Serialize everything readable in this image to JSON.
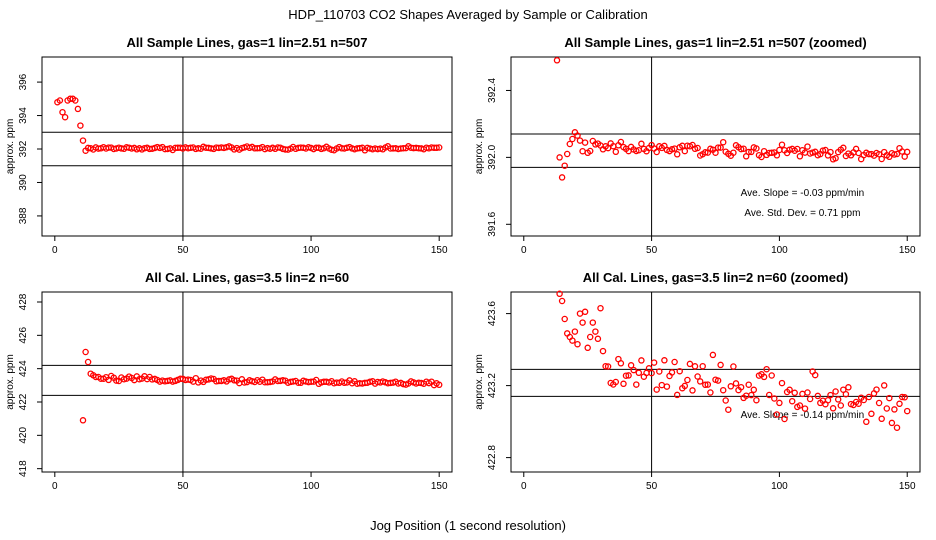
{
  "suptitle": "HDP_110703  CO2 Shapes Averaged by Sample or Calibration",
  "xlabel_common": "Jog Position (1 second resolution)",
  "colors": {
    "points": "#ff0000",
    "lines": "#000000",
    "background": "#ffffff"
  },
  "chart_data": [
    {
      "type": "scatter",
      "title": "All Sample Lines, gas=1 lin=2.51 n=507",
      "ylabel": "approx. ppm",
      "xlim": [
        -5,
        155
      ],
      "ylim": [
        386.8,
        397.5
      ],
      "xticks": [
        0,
        50,
        100,
        150
      ],
      "xtick_labels": [
        "0",
        "50",
        "100",
        "150"
      ],
      "yticks": [
        388,
        390,
        392,
        394,
        396
      ],
      "ytick_labels": [
        "388",
        "390",
        "392",
        "394",
        "396"
      ],
      "hlines": [
        393.0,
        391.0
      ],
      "vline": 50,
      "annotations": [],
      "series": [
        {
          "x": [
            1,
            2,
            3,
            4,
            5,
            6,
            7,
            8,
            9,
            10,
            11,
            12
          ],
          "y": [
            394.8,
            394.9,
            394.2,
            393.9,
            394.9,
            395.0,
            395.0,
            394.9,
            394.4,
            393.4,
            392.5,
            391.9
          ]
        }
      ],
      "series_trend": {
        "x_from": 13,
        "x_to": 150,
        "level": 392.05,
        "amp": 0.07,
        "trend": 0.0
      }
    },
    {
      "type": "scatter",
      "title": "All Sample Lines, gas=1 lin=2.51 n=507 (zoomed)",
      "ylabel": "approx. ppm",
      "xlim": [
        -5,
        155
      ],
      "ylim": [
        391.53,
        392.6
      ],
      "xticks": [
        0,
        50,
        100,
        150
      ],
      "xtick_labels": [
        "0",
        "50",
        "100",
        "150"
      ],
      "yticks": [
        391.6,
        392.0,
        392.4
      ],
      "ytick_labels": [
        "391.6",
        "392.0",
        "392.4"
      ],
      "hlines": [
        392.14,
        391.94
      ],
      "vline": 50,
      "annotations": [
        {
          "text": "Ave. Slope =  -0.03  ppm/min",
          "x": 109,
          "y": 391.77
        },
        {
          "text": "Ave. Std. Dev. =  0.71  ppm",
          "x": 109,
          "y": 391.65
        }
      ],
      "series": [
        {
          "x": [
            13,
            14,
            15,
            16,
            17,
            18,
            19,
            20,
            21,
            22
          ],
          "y": [
            392.58,
            392.0,
            391.88,
            391.95,
            392.02,
            392.08,
            392.11,
            392.15,
            392.13,
            392.1
          ]
        }
      ],
      "series_trend": {
        "x_from": 23,
        "x_to": 150,
        "level": 392.06,
        "amp": 0.03,
        "trend": -0.045
      }
    },
    {
      "type": "scatter",
      "title": "All Cal. Lines, gas=3.5 lin=2 n=60",
      "ylabel": "approx. ppm",
      "xlim": [
        -5,
        155
      ],
      "ylim": [
        417.8,
        428.6
      ],
      "xticks": [
        0,
        50,
        100,
        150
      ],
      "xtick_labels": [
        "0",
        "50",
        "100",
        "150"
      ],
      "yticks": [
        418,
        420,
        422,
        424,
        426,
        428
      ],
      "ytick_labels": [
        "418",
        "420",
        "422",
        "424",
        "426",
        "428"
      ],
      "hlines": [
        424.2,
        422.4
      ],
      "vline": 50,
      "annotations": [],
      "series": [
        {
          "x": [
            11,
            12,
            13,
            14,
            15,
            16,
            17,
            18,
            19
          ],
          "y": [
            420.9,
            425.0,
            424.4,
            423.7,
            423.6,
            423.5,
            423.5,
            423.4,
            423.4
          ]
        }
      ],
      "series_trend": {
        "x_from": 20,
        "x_to": 150,
        "level": 423.4,
        "amp": 0.1,
        "trend": -0.3
      }
    },
    {
      "type": "scatter",
      "title": "All Cal. Lines, gas=3.5 lin=2 n=60 (zoomed)",
      "ylabel": "approx. ppm",
      "xlim": [
        -5,
        155
      ],
      "ylim": [
        422.72,
        423.72
      ],
      "xticks": [
        0,
        50,
        100,
        150
      ],
      "xtick_labels": [
        "0",
        "50",
        "100",
        "150"
      ],
      "yticks": [
        422.8,
        423.2,
        423.6
      ],
      "ytick_labels": [
        "422.8",
        "423.2",
        "423.6"
      ],
      "hlines": [
        423.29,
        423.14
      ],
      "vline": 50,
      "annotations": [
        {
          "text": "Ave. Slope =  -0.14  ppm/min",
          "x": 109,
          "y": 423.02
        }
      ],
      "series": [
        {
          "x": [
            14,
            15,
            16,
            17,
            18,
            19,
            20,
            21,
            22,
            23,
            24,
            25,
            26,
            27,
            28,
            29,
            30
          ],
          "y": [
            423.71,
            423.67,
            423.57,
            423.49,
            423.47,
            423.45,
            423.5,
            423.43,
            423.6,
            423.55,
            423.61,
            423.41,
            423.47,
            423.55,
            423.5,
            423.46,
            423.63
          ]
        }
      ],
      "series_trend": {
        "x_from": 31,
        "x_to": 150,
        "level": 423.28,
        "amp": 0.09,
        "trend": -0.2
      }
    }
  ]
}
